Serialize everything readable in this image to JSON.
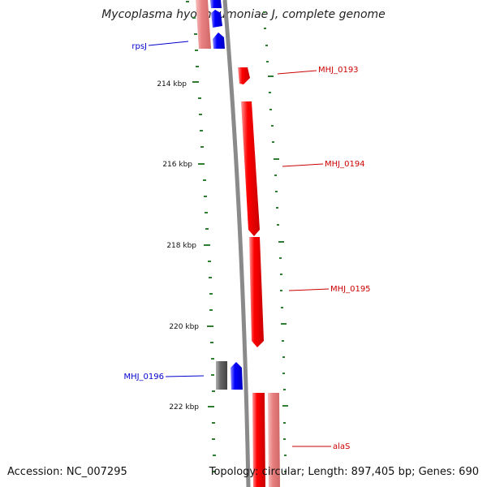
{
  "title": "Mycoplasma hyopneumoniae J, complete genome",
  "accession": "Accession: NC_007295",
  "summary": "Topology: circular; Length: 897,405 bp; Genes: 690",
  "scale_labels": [
    "214 kbp",
    "216 kbp",
    "218 kbp",
    "220 kbp",
    "222 kbp"
  ],
  "genes": [
    {
      "name": "rpsJ",
      "strand": "reverse",
      "color": "#0000cc"
    },
    {
      "name": "MHJ_0193",
      "strand": "forward",
      "color": "#cc0000"
    },
    {
      "name": "MHJ_0194",
      "strand": "forward",
      "color": "#cc0000"
    },
    {
      "name": "MHJ_0195",
      "strand": "forward",
      "color": "#cc0000"
    },
    {
      "name": "MHJ_0196",
      "strand": "reverse",
      "color": "#0000cc"
    },
    {
      "name": "alaS",
      "strand": "forward",
      "color": "#cc0000"
    }
  ],
  "colors": {
    "forward_cds": "#ff0000",
    "reverse_cds": "#0000ff",
    "forward_rna": "#e88080",
    "reverse_rna": "#666666",
    "backbone": "#808080",
    "tick": "#2e7d32"
  }
}
